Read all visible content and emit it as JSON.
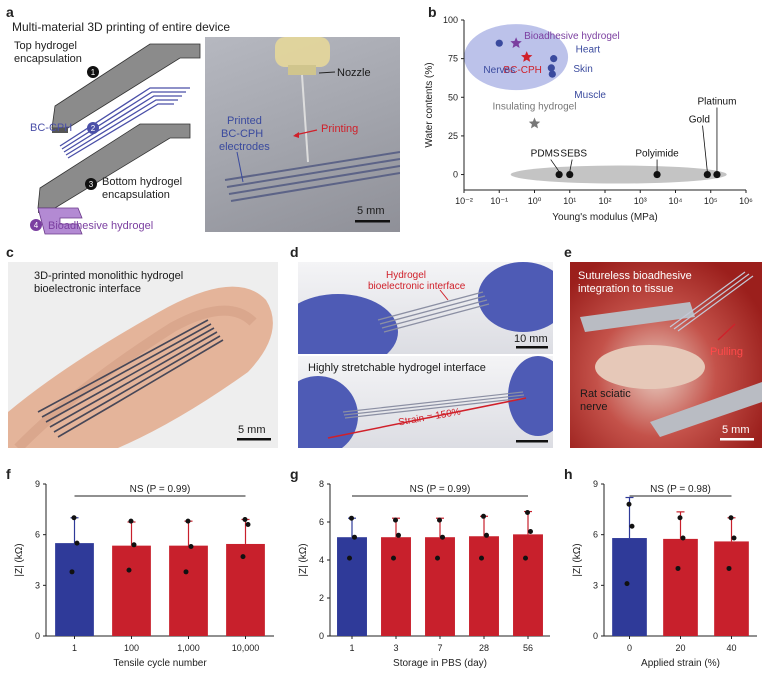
{
  "panels": {
    "a": {
      "letter": "a",
      "title": "Multi-material 3D printing of entire device",
      "labels": {
        "top": "Top hydrogel",
        "top2": "encapsulation",
        "bc": "BC-CPH",
        "bottom": "Bottom hydrogel",
        "bottom2": "encapsulation",
        "bioadhesive": "Bioadhesive hydrogel",
        "n1": "1",
        "n2": "2",
        "n3": "3",
        "n4": "4"
      },
      "photo": {
        "nozzle": "Nozzle",
        "printing": "Printing",
        "printed1": "Printed",
        "printed2": "BC-CPH",
        "printed3": "electrodes",
        "scale": "5 mm"
      }
    },
    "b": {
      "letter": "b",
      "ylabel": "Water contents (%)",
      "xlabel": "Young's modulus (MPa)"
    },
    "c": {
      "letter": "c",
      "line1": "3D-printed monolithic hydrogel",
      "line2": "bioelectronic interface",
      "scale": "5 mm"
    },
    "d": {
      "letter": "d",
      "label1a": "Hydrogel",
      "label1b": "bioelectronic interface",
      "scale": "10 mm",
      "title2": "Highly stretchable hydrogel interface",
      "strain": "Strain = 150%"
    },
    "e": {
      "letter": "e",
      "line1": "Sutureless bioadhesive",
      "line2": "integration to tissue",
      "pulling": "Pulling",
      "nerve1": "Rat sciatic",
      "nerve2": "nerve",
      "scale": "5 mm"
    },
    "f": {
      "letter": "f"
    },
    "g": {
      "letter": "g"
    },
    "h": {
      "letter": "h"
    }
  },
  "chart_data": [
    {
      "id": "b",
      "type": "scatter",
      "xlabel": "Young's modulus (MPa)",
      "ylabel": "Water contents (%)",
      "xscale": "log",
      "xlim": [
        0.01,
        1000000
      ],
      "ylim": [
        -10,
        100
      ],
      "xticks": [
        "10⁻²",
        "10⁻¹",
        "10⁰",
        "10¹",
        "10²",
        "10³",
        "10⁴",
        "10⁵",
        "10⁶"
      ],
      "yticks": [
        "0",
        "25",
        "50",
        "75",
        "100"
      ],
      "points": [
        {
          "name": "Bioadhesive hydrogel",
          "x": 0.3,
          "y": 85,
          "color": "#7b3fa0",
          "marker": "star"
        },
        {
          "name": "BC-CPH",
          "x": 0.6,
          "y": 76,
          "color": "#d0202a",
          "marker": "star"
        },
        {
          "name": "Insulating hydrogel",
          "x": 1.0,
          "y": 33,
          "color": "#777777",
          "marker": "star"
        },
        {
          "name": "Nerves",
          "x": 0.1,
          "y": 85,
          "color": "#3a4a9e",
          "marker": "dot"
        },
        {
          "name": "Heart",
          "x": 3.5,
          "y": 75,
          "color": "#3a4a9e",
          "marker": "dot"
        },
        {
          "name": "Skin",
          "x": 3.0,
          "y": 69,
          "color": "#3a4a9e",
          "marker": "dot"
        },
        {
          "name": "Muscle",
          "x": 3.2,
          "y": 65,
          "color": "#3a4a9e",
          "marker": "dot"
        },
        {
          "name": "PDMS",
          "x": 5,
          "y": 0,
          "color": "#111111",
          "marker": "dot"
        },
        {
          "name": "SEBS",
          "x": 10,
          "y": 0,
          "color": "#111111",
          "marker": "dot"
        },
        {
          "name": "Polyimide",
          "x": 3000,
          "y": 0,
          "color": "#111111",
          "marker": "dot"
        },
        {
          "name": "Gold",
          "x": 80000,
          "y": 0,
          "color": "#111111",
          "marker": "dot"
        },
        {
          "name": "Platinum",
          "x": 150000,
          "y": 0,
          "color": "#111111",
          "marker": "dot"
        }
      ],
      "labels": {
        "Bioadhesive hydrogel": "Bioadhesive hydrogel",
        "BC-CPH": "BC-CPH",
        "Insulating hydrogel": "Insulating hydrogel",
        "Nerves": "Nerves",
        "Heart": "Heart",
        "Skin": "Skin",
        "Muscle": "Muscle",
        "PDMS": "PDMS",
        "SEBS": "SEBS",
        "Polyimide": "Polyimide",
        "Gold": "Gold",
        "Platinum": "Platinum"
      }
    },
    {
      "id": "f",
      "type": "bar",
      "xlabel": "Tensile cycle number",
      "ylabel": "|Z| (kΩ)",
      "ylim": [
        0,
        9
      ],
      "yticks": [
        "0",
        "3",
        "6",
        "9"
      ],
      "categories": [
        "1",
        "100",
        "1,000",
        "10,000"
      ],
      "values": [
        5.5,
        5.35,
        5.35,
        5.45
      ],
      "errors": [
        1.5,
        1.4,
        1.45,
        1.45
      ],
      "points": [
        [
          7.0,
          5.5,
          3.8
        ],
        [
          6.8,
          5.4,
          3.9
        ],
        [
          6.8,
          5.3,
          3.8
        ],
        [
          6.9,
          6.6,
          4.7
        ]
      ],
      "colors": [
        "#2f3a99",
        "#c8202c",
        "#c8202c",
        "#c8202c"
      ],
      "annotation": "NS (P = 0.99)"
    },
    {
      "id": "g",
      "type": "bar",
      "xlabel": "Storage in PBS (day)",
      "ylabel": "|Z| (kΩ)",
      "ylim": [
        0,
        8
      ],
      "yticks": [
        "0",
        "2",
        "4",
        "6",
        "8"
      ],
      "categories": [
        "1",
        "3",
        "7",
        "28",
        "56"
      ],
      "values": [
        5.2,
        5.2,
        5.2,
        5.25,
        5.35
      ],
      "errors": [
        1.0,
        1.0,
        1.0,
        1.05,
        1.2
      ],
      "points": [
        [
          6.2,
          5.2,
          4.1
        ],
        [
          6.1,
          5.3,
          4.1
        ],
        [
          6.1,
          5.2,
          4.1
        ],
        [
          6.3,
          5.3,
          4.1
        ],
        [
          6.5,
          5.5,
          4.1
        ]
      ],
      "colors": [
        "#2f3a99",
        "#c8202c",
        "#c8202c",
        "#c8202c",
        "#c8202c"
      ],
      "annotation": "NS (P = 0.99)"
    },
    {
      "id": "h",
      "type": "bar",
      "xlabel": "Applied strain (%)",
      "ylabel": "|Z| (kΩ)",
      "ylim": [
        0,
        9
      ],
      "yticks": [
        "0",
        "3",
        "6",
        "9"
      ],
      "categories": [
        "0",
        "20",
        "40"
      ],
      "values": [
        5.8,
        5.75,
        5.6
      ],
      "errors": [
        2.4,
        1.6,
        1.4
      ],
      "points": [
        [
          7.8,
          6.5,
          3.1
        ],
        [
          7.0,
          5.8,
          4.0
        ],
        [
          7.0,
          5.8,
          4.0
        ]
      ],
      "colors": [
        "#2f3a99",
        "#c8202c",
        "#c8202c"
      ],
      "annotation": "NS (P = 0.98)"
    }
  ]
}
